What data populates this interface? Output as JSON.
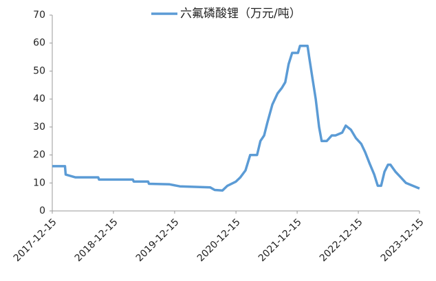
{
  "chart_data": {
    "type": "line",
    "series": [
      {
        "name": "六氟磷酸锂（万元/吨）",
        "color": "#5b9bd5",
        "x": [
          "2017-12-15",
          "2018-03-01",
          "2018-03-05",
          "2018-05-01",
          "2018-09-15",
          "2018-09-20",
          "2019-04-10",
          "2019-04-15",
          "2019-07-10",
          "2019-07-15",
          "2019-11-15",
          "2020-01-15",
          "2020-07-15",
          "2020-08-10",
          "2020-09-25",
          "2020-10-25",
          "2020-12-15",
          "2021-01-10",
          "2021-02-10",
          "2021-03-10",
          "2021-04-20",
          "2021-05-10",
          "2021-06-01",
          "2021-06-20",
          "2021-07-20",
          "2021-08-20",
          "2021-09-15",
          "2021-10-05",
          "2021-10-25",
          "2021-11-15",
          "2021-12-20",
          "2022-01-01",
          "2022-02-15",
          "2022-02-25",
          "2022-03-15",
          "2022-04-05",
          "2022-04-25",
          "2022-05-10",
          "2022-06-10",
          "2022-07-10",
          "2022-08-01",
          "2022-09-10",
          "2022-10-01",
          "2022-11-01",
          "2022-12-01",
          "2023-01-01",
          "2023-01-25",
          "2023-02-20",
          "2023-03-20",
          "2023-04-10",
          "2023-04-30",
          "2023-05-20",
          "2023-06-10",
          "2023-06-25",
          "2023-07-25",
          "2023-08-25",
          "2023-09-25",
          "2023-11-05",
          "2023-12-15"
        ],
        "values": [
          16,
          16,
          13,
          12,
          12,
          11.2,
          11.2,
          10.5,
          10.5,
          9.7,
          9.5,
          8.8,
          8.4,
          7.5,
          7.3,
          9,
          10.5,
          12,
          14.5,
          20,
          20,
          25,
          27,
          31.5,
          38,
          42,
          44,
          46,
          52.5,
          56.5,
          56.5,
          59,
          59,
          55,
          48,
          40,
          30,
          25,
          25,
          27,
          27,
          28,
          30.5,
          29,
          26,
          24,
          21,
          17,
          13,
          9,
          9,
          14,
          16.5,
          16.5,
          14,
          12,
          10,
          9,
          8
        ]
      }
    ],
    "xticks": [
      "2017-12-15",
      "2018-12-15",
      "2019-12-15",
      "2020-12-15",
      "2021-12-15",
      "2022-12-15",
      "2023-12-15"
    ],
    "xlim": [
      "2017-12-15",
      "2023-12-15"
    ],
    "ylim": [
      0,
      70
    ],
    "yticks": [
      0,
      10,
      20,
      30,
      40,
      50,
      60,
      70
    ],
    "legend": "top"
  }
}
